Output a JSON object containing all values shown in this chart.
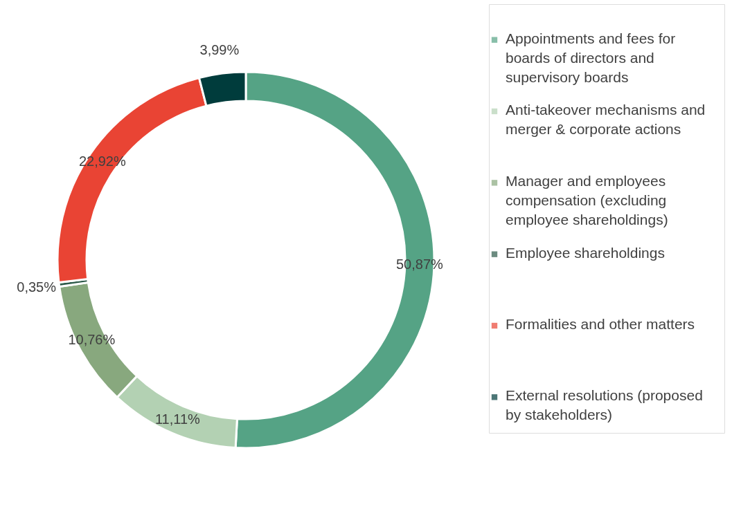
{
  "chart_data": {
    "type": "donut",
    "categories": [
      "Appointments and fees for boards of directors and supervisory boards",
      "Anti-takeover mechanisms and merger & corporate actions",
      "Manager and employees compensation (excluding employee shareholdings)",
      "Employee shareholdings",
      "Formalities and other matters",
      "External resolutions (proposed by stakeholders)"
    ],
    "values": [
      50.87,
      11.11,
      10.76,
      0.35,
      22.92,
      3.99
    ],
    "colors": [
      "#55a385",
      "#b3d1b3",
      "#88a87e",
      "#2d5a4a",
      "#e94434",
      "#003c3c"
    ],
    "value_labels": [
      "50,87%",
      "11,11%",
      "10,76%",
      "0,35%",
      "22,92%",
      "3,99%"
    ],
    "legend": "right"
  }
}
